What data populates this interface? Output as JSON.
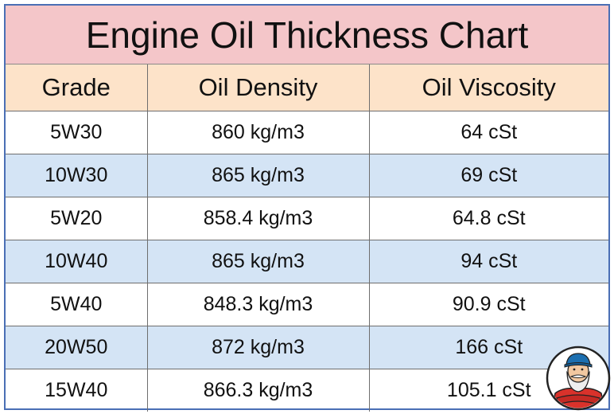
{
  "title": "Engine Oil Thickness Chart",
  "columns": [
    "Grade",
    "Oil Density",
    "Oil Viscosity"
  ],
  "rows": [
    [
      "5W30",
      "860 kg/m3",
      "64 cSt"
    ],
    [
      "10W30",
      "865 kg/m3",
      "69 cSt"
    ],
    [
      "5W20",
      "858.4 kg/m3",
      "64.8 cSt"
    ],
    [
      "10W40",
      "865 kg/m3",
      "94 cSt"
    ],
    [
      "5W40",
      "848.3 kg/m3",
      "90.9 cSt"
    ],
    [
      "20W50",
      "872 kg/m3",
      "166 cSt"
    ],
    [
      "15W40",
      "866.3 kg/m3",
      "105.1 cSt"
    ]
  ],
  "colors": {
    "title_bg": "#f4c6c9",
    "header_bg": "#fde3c9",
    "alt_row_bg": "#d4e4f5",
    "border": "#4a6fb5"
  },
  "icons": {
    "avatar": "mechanic-avatar-icon"
  },
  "chart_data": {
    "type": "table",
    "title": "Engine Oil Thickness Chart",
    "columns": [
      "Grade",
      "Oil Density",
      "Oil Viscosity"
    ],
    "rows": [
      {
        "grade": "5W30",
        "density": 860,
        "viscosity": 64
      },
      {
        "grade": "10W30",
        "density": 865,
        "viscosity": 69
      },
      {
        "grade": "5W20",
        "density": 858.4,
        "viscosity": 64.8
      },
      {
        "grade": "10W40",
        "density": 865,
        "viscosity": 94
      },
      {
        "grade": "5W40",
        "density": 848.3,
        "viscosity": 90.9
      },
      {
        "grade": "20W50",
        "density": 872,
        "viscosity": 166
      },
      {
        "grade": "15W40",
        "density": 866.3,
        "viscosity": 105.1
      }
    ],
    "density_unit": "kg/m3",
    "viscosity_unit": "cSt"
  }
}
